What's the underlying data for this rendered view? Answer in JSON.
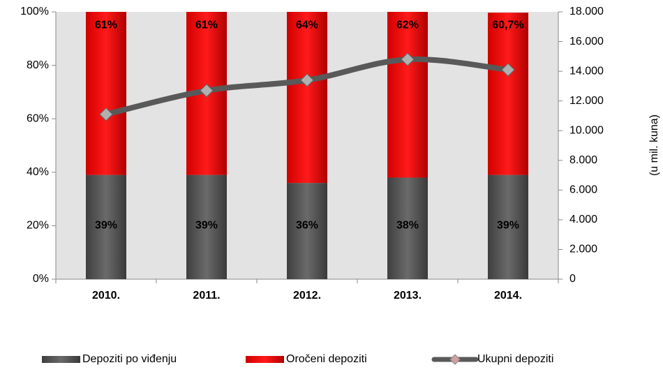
{
  "chart_data": {
    "type": "bar_line",
    "categories": [
      "2010.",
      "2011.",
      "2012.",
      "2013.",
      "2014."
    ],
    "series": [
      {
        "name": "Depoziti po viđenju",
        "color": "#595959",
        "values": [
          39,
          39,
          36,
          38,
          39
        ],
        "value_labels": [
          "39%",
          "39%",
          "36%",
          "38%",
          "39%"
        ]
      },
      {
        "name": "Oročeni depoziti",
        "color": "#ff0000",
        "values": [
          61,
          61,
          64,
          62,
          60.7
        ],
        "value_labels": [
          "61%",
          "61%",
          "64%",
          "62%",
          "60,7%"
        ]
      },
      {
        "name": "Ukupni depoziti",
        "color": "#595959",
        "axis": "y2",
        "values": [
          11100,
          12700,
          13400,
          14800,
          14100
        ]
      }
    ],
    "ylim": [
      0,
      100
    ],
    "yticks": [
      {
        "value": 0,
        "label": "0%"
      },
      {
        "value": 20,
        "label": "20%"
      },
      {
        "value": 40,
        "label": "40%"
      },
      {
        "value": 60,
        "label": "60%"
      },
      {
        "value": 80,
        "label": "80%"
      },
      {
        "value": 100,
        "label": "100%"
      }
    ],
    "y2lim": [
      0,
      18000
    ],
    "y2ticks": [
      0,
      {
        "value": 2000,
        "label": "2.000"
      },
      {
        "value": 4000,
        "label": "4.000"
      },
      {
        "value": 6000,
        "label": "6.000"
      },
      {
        "value": 8000,
        "label": "8.000"
      },
      {
        "value": 10000,
        "label": "10.000"
      },
      {
        "value": 12000,
        "label": "12.000"
      },
      {
        "value": 14000,
        "label": "14.000"
      },
      {
        "value": 16000,
        "label": "16.000"
      },
      {
        "value": 18000,
        "label": "18.000"
      }
    ],
    "y2_label": "(u mil. kuna)",
    "legend": "bottom"
  }
}
